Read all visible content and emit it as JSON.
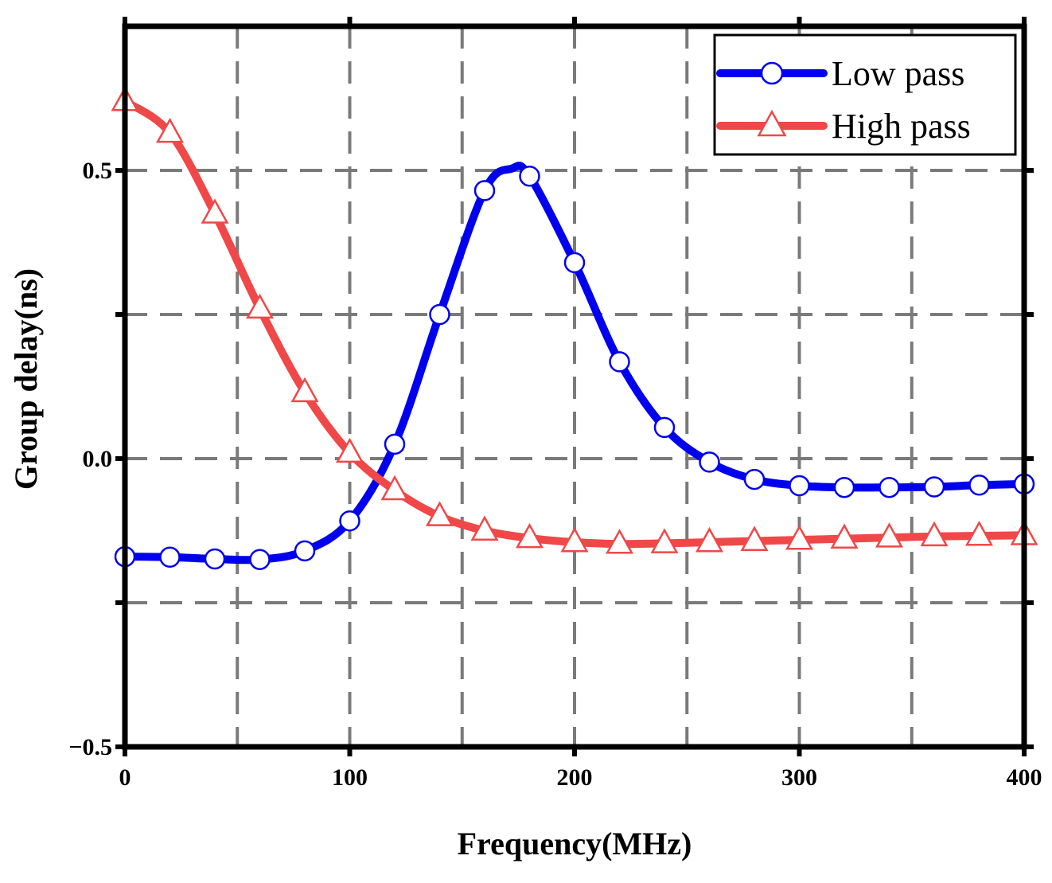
{
  "chart_data": {
    "type": "line",
    "title": "",
    "xlabel": "Frequency(MHz)",
    "ylabel": "Group delay(ns)",
    "xlim": [
      0,
      400
    ],
    "ylim": [
      -0.5,
      0.75
    ],
    "xticks": [
      0,
      100,
      200,
      300,
      400
    ],
    "xtick_labels": [
      "0",
      "100",
      "200",
      "300",
      "400"
    ],
    "yticks": [
      -0.5,
      0.0,
      0.5
    ],
    "ytick_labels": [
      "−0.5",
      "0.0",
      "0.5"
    ],
    "grid_x": [
      50,
      100,
      150,
      200,
      250,
      300,
      350
    ],
    "grid_y": [
      -0.25,
      0.0,
      0.25,
      0.5
    ],
    "grid": true,
    "legend_position": "top-right",
    "series": [
      {
        "name": "Low pass",
        "color": "#0000ee",
        "marker": "circle",
        "x": [
          0,
          20,
          40,
          60,
          80,
          100,
          120,
          140,
          160,
          172,
          180,
          200,
          220,
          240,
          260,
          280,
          300,
          320,
          340,
          360,
          380,
          400
        ],
        "values": [
          -0.17,
          -0.171,
          -0.174,
          -0.175,
          -0.16,
          -0.108,
          0.025,
          0.25,
          0.465,
          0.503,
          0.49,
          0.34,
          0.168,
          0.054,
          -0.006,
          -0.036,
          -0.047,
          -0.05,
          -0.05,
          -0.049,
          -0.046,
          -0.044
        ],
        "marker_x": [
          0,
          20,
          40,
          60,
          80,
          100,
          120,
          140,
          160,
          180,
          200,
          220,
          240,
          260,
          280,
          300,
          320,
          340,
          360,
          380,
          400
        ],
        "marker_values": [
          -0.17,
          -0.171,
          -0.174,
          -0.175,
          -0.16,
          -0.108,
          0.025,
          0.25,
          0.465,
          0.49,
          0.34,
          0.168,
          0.054,
          -0.006,
          -0.036,
          -0.047,
          -0.05,
          -0.05,
          -0.049,
          -0.046,
          -0.044
        ]
      },
      {
        "name": "High pass",
        "color": "#f04848",
        "marker": "triangle",
        "x": [
          0,
          20,
          40,
          60,
          80,
          100,
          120,
          140,
          160,
          180,
          200,
          220,
          240,
          260,
          280,
          300,
          320,
          340,
          360,
          380,
          400
        ],
        "values": [
          0.62,
          0.565,
          0.425,
          0.26,
          0.115,
          0.01,
          -0.055,
          -0.1,
          -0.125,
          -0.138,
          -0.145,
          -0.148,
          -0.147,
          -0.145,
          -0.143,
          -0.141,
          -0.139,
          -0.137,
          -0.135,
          -0.134,
          -0.133
        ],
        "marker_x": [
          0,
          20,
          40,
          60,
          80,
          100,
          120,
          140,
          160,
          180,
          200,
          220,
          240,
          260,
          280,
          300,
          320,
          340,
          360,
          380,
          400
        ],
        "marker_values": [
          0.62,
          0.565,
          0.425,
          0.26,
          0.115,
          0.01,
          -0.055,
          -0.1,
          -0.125,
          -0.138,
          -0.145,
          -0.148,
          -0.147,
          -0.145,
          -0.143,
          -0.141,
          -0.139,
          -0.137,
          -0.135,
          -0.134,
          -0.133
        ]
      }
    ]
  }
}
